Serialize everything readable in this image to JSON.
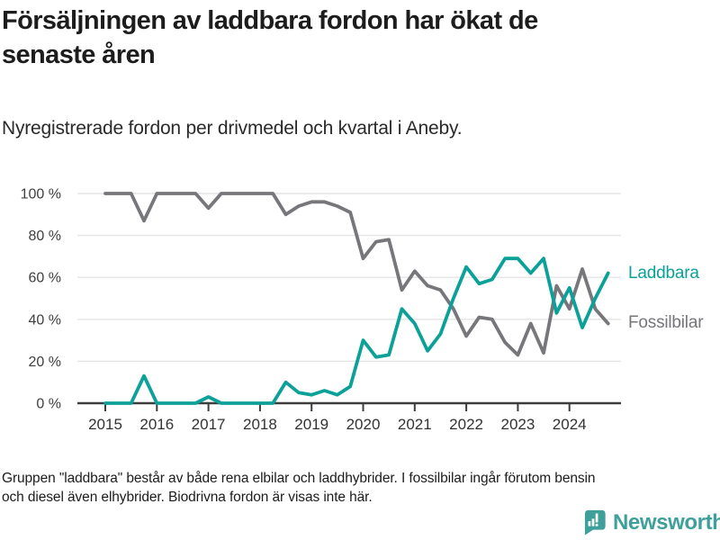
{
  "chart_data": {
    "type": "line",
    "title": "Försäljningen av laddbara fordon har ökat de\nsenaste åren",
    "subtitle": "Nyregistrerade fordon per drivmedel och kvartal i Aneby.",
    "unit": "%",
    "x_start_year": 2015,
    "points_per_year": 4,
    "x_tick_labels": [
      "2015",
      "2016",
      "2017",
      "2018",
      "2019",
      "2020",
      "2021",
      "2022",
      "2023",
      "2024"
    ],
    "y_ticks": [
      0,
      20,
      40,
      60,
      80,
      100
    ],
    "y_tick_suffix": " %",
    "ylim": [
      0,
      100
    ],
    "grid": true,
    "legend_position": "right-of-line-ends",
    "series": [
      {
        "name": "Laddbara",
        "color": "#0ba198",
        "values": [
          0,
          0,
          0,
          13,
          0,
          0,
          0,
          0,
          3,
          0,
          0,
          0,
          0,
          0,
          10,
          5,
          4,
          6,
          4,
          8,
          30,
          22,
          23,
          45,
          38,
          25,
          33,
          50,
          65,
          57,
          59,
          69,
          69,
          62,
          69,
          43,
          55,
          36,
          50,
          62
        ]
      },
      {
        "name": "Fossilbilar",
        "color": "#76767b",
        "values": [
          100,
          100,
          100,
          87,
          100,
          100,
          100,
          100,
          93,
          100,
          100,
          100,
          100,
          100,
          90,
          94,
          96,
          96,
          94,
          91,
          69,
          77,
          78,
          54,
          63,
          56,
          54,
          45,
          32,
          41,
          40,
          29,
          23,
          38,
          24,
          56,
          45,
          64,
          45,
          38
        ]
      }
    ],
    "axis_colors": {
      "grid": "#e4e4e4",
      "axis_line": "#3d3d3d",
      "tick_text": "#3f3f3f",
      "year_text": "#333333"
    }
  },
  "footer": {
    "note": "Gruppen \"laddbara\" består av både rena elbilar och laddhybrider. I fossilbilar ingår förutom bensin\noch diesel även elhybrider. Biodrivna fordon är visas inte här.",
    "brand": "Newsworthy",
    "brand_color": "#3f9f9a"
  }
}
